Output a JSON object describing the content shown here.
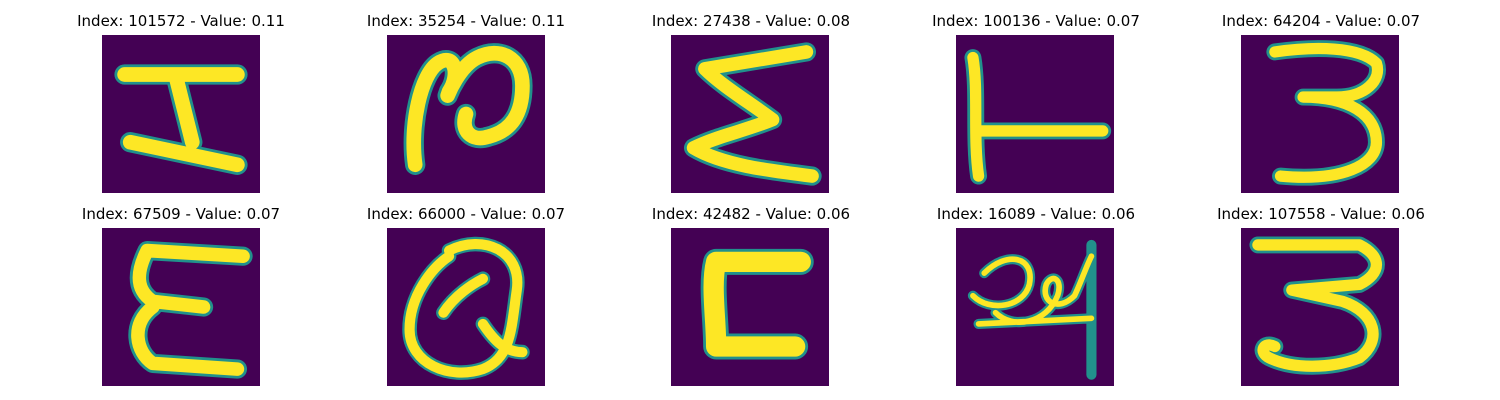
{
  "figure": {
    "panels": [
      {
        "title": "Index: 101572 - Value: 0.11",
        "glyph": "H-like shape"
      },
      {
        "title": "Index: 35254 - Value: 0.11",
        "glyph": "looped 2-like shape"
      },
      {
        "title": "Index: 27438 - Value: 0.08",
        "glyph": "sigma-like shape"
      },
      {
        "title": "Index: 100136 - Value: 0.07",
        "glyph": "T-like shape (rotated)"
      },
      {
        "title": "Index: 64204 - Value: 0.07",
        "glyph": "digit 3"
      },
      {
        "title": "Index: 67509 - Value: 0.07",
        "glyph": "E-like shape"
      },
      {
        "title": "Index: 66000 - Value: 0.07",
        "glyph": "Q-like shape"
      },
      {
        "title": "Index: 42482 - Value: 0.06",
        "glyph": "C-like shape"
      },
      {
        "title": "Index: 16089 - Value: 0.06",
        "glyph": "cursive scribble"
      },
      {
        "title": "Index: 107558 - Value: 0.06",
        "glyph": "digit 3"
      }
    ],
    "colors": {
      "background": "#440154",
      "stroke": "#fde725",
      "edge": "#21918c",
      "edge_light": "#5ec962"
    }
  }
}
